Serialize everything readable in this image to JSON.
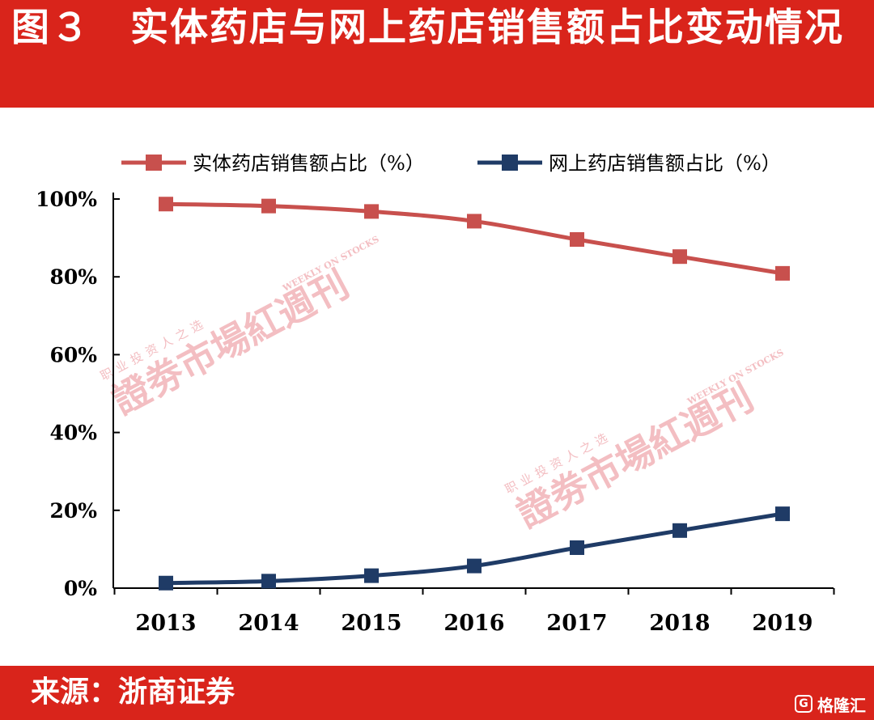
{
  "header": {
    "title": "图３　实体药店与网上药店销售额占比变动情况"
  },
  "footer": {
    "source": "来源：浙商证券",
    "brand": "格隆汇",
    "brand_icon": "G"
  },
  "watermark": {
    "top_line": "职业投资人之选",
    "main": "證劵市場紅週刊",
    "english": "WEEKLY ON STOCKS"
  },
  "colors": {
    "header_bg": "#d9241b",
    "series_offline": "#c8504d",
    "series_online": "#1f3b66",
    "watermark": "#f2b3b8"
  },
  "chart_data": {
    "type": "line",
    "x": [
      "2013",
      "2014",
      "2015",
      "2016",
      "2017",
      "2018",
      "2019"
    ],
    "series": [
      {
        "name": "实体药店销售额占比（%）",
        "values": [
          98.7,
          98.2,
          96.8,
          94.3,
          89.6,
          85.2,
          80.9
        ]
      },
      {
        "name": "网上药店销售额占比（%）",
        "values": [
          1.3,
          1.8,
          3.2,
          5.7,
          10.4,
          14.8,
          19.1
        ]
      }
    ],
    "yticks": [
      "0%",
      "20%",
      "40%",
      "60%",
      "80%",
      "100%"
    ],
    "ylim": [
      0,
      100
    ],
    "legend": "top",
    "grid": false,
    "title": "",
    "xlabel": "",
    "ylabel": ""
  }
}
